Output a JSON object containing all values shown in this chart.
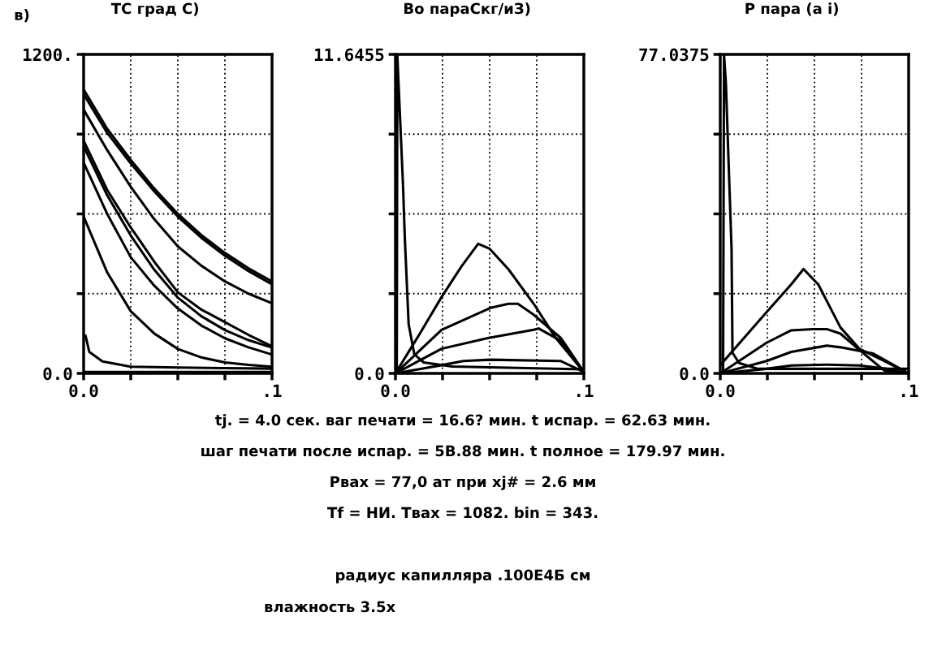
{
  "chart_data": [
    {
      "type": "line",
      "title": "ТС град С)",
      "annotations": [
        "в)"
      ],
      "xlim": [
        0,
        0.1
      ],
      "xticks": [
        {
          "value": 0,
          "label": "0.0"
        },
        {
          "value": 0.025,
          "label": null
        },
        {
          "value": 0.05,
          "label": null
        },
        {
          "value": 0.075,
          "label": null
        },
        {
          "value": 0.1,
          "label": ".1"
        }
      ],
      "ylim": [
        0,
        1200
      ],
      "yticks": [
        {
          "value": 0,
          "label": "0.0"
        },
        {
          "value": 300,
          "label": null
        },
        {
          "value": 600,
          "label": null
        },
        {
          "value": 900,
          "label": null
        },
        {
          "value": 1200,
          "label": "1200."
        }
      ],
      "grid": true,
      "line_style": "solid",
      "series": [
        {
          "color": "#000000",
          "x": [
            0,
            0.0125,
            0.025,
            0.0375,
            0.05,
            0.0625,
            0.075,
            0.0875,
            0.1
          ],
          "values": [
            1068,
            920,
            803,
            695,
            600,
            520,
            453,
            395,
            346
          ]
        },
        {
          "color": "#000000",
          "x": [
            0,
            0.0125,
            0.025,
            0.0375,
            0.05,
            0.0625,
            0.075,
            0.0875,
            0.1
          ],
          "values": [
            1050,
            905,
            790,
            685,
            590,
            510,
            443,
            385,
            335
          ]
        },
        {
          "color": "#000000",
          "x": [
            0,
            0.0125,
            0.025,
            0.0375,
            0.05,
            0.0625,
            0.075,
            0.0875,
            0.1
          ],
          "values": [
            992,
            840,
            702,
            580,
            478,
            405,
            346,
            300,
            264
          ]
        },
        {
          "color": "#000000",
          "x": [
            0,
            0.0125,
            0.025,
            0.0375,
            0.05,
            0.0625,
            0.075,
            0.0875,
            0.1
          ],
          "values": [
            875,
            690,
            549,
            420,
            305,
            240,
            193,
            145,
            102
          ]
        },
        {
          "color": "#000000",
          "x": [
            0,
            0.0125,
            0.025,
            0.0375,
            0.05,
            0.0625,
            0.075,
            0.0875,
            0.1
          ],
          "values": [
            854,
            670,
            519,
            390,
            285,
            215,
            163,
            125,
            97
          ]
        },
        {
          "color": "#000000",
          "x": [
            0,
            0.0125,
            0.025,
            0.0375,
            0.05,
            0.0625,
            0.075,
            0.0875,
            0.1
          ],
          "values": [
            793,
            600,
            437,
            330,
            244,
            180,
            132,
            98,
            71
          ]
        },
        {
          "color": "#000000",
          "x": [
            0,
            0.0125,
            0.025,
            0.0375,
            0.05,
            0.0625,
            0.075,
            0.0875,
            0.1
          ],
          "values": [
            590,
            380,
            234,
            150,
            92,
            60,
            41,
            32,
            25
          ]
        },
        {
          "color": "#000000",
          "x": [
            0,
            0.001,
            0.003,
            0.01,
            0.025,
            0.05,
            0.075,
            0.1
          ],
          "values": [
            142,
            142,
            81,
            45,
            25,
            22,
            20,
            18
          ]
        },
        {
          "color": "#000000",
          "x": [
            0,
            0.1
          ],
          "values": [
            5,
            5
          ]
        }
      ]
    },
    {
      "type": "line",
      "title": "Во параСкг/иЗ)",
      "xlim": [
        0,
        0.1
      ],
      "xticks": [
        {
          "value": 0,
          "label": "0.0"
        },
        {
          "value": 0.025,
          "label": null
        },
        {
          "value": 0.05,
          "label": null
        },
        {
          "value": 0.075,
          "label": null
        },
        {
          "value": 0.1,
          "label": ".1"
        }
      ],
      "ylim": [
        0,
        11.6455
      ],
      "yticks": [
        {
          "value": 0,
          "label": "0.0"
        },
        {
          "value": 2.911375,
          "label": null
        },
        {
          "value": 5.82275,
          "label": null
        },
        {
          "value": 8.734125,
          "label": null
        },
        {
          "value": 11.6455,
          "label": "11.6455"
        }
      ],
      "grid": true,
      "line_style": "solid",
      "series": [
        {
          "color": "#000000",
          "x": [
            0.0007,
            0.001,
            0.004,
            0.005,
            0.007,
            0.01,
            0.015,
            0.03,
            0.1
          ],
          "values": [
            0,
            11.6,
            6.9,
            4.9,
            1.8,
            0.7,
            0.4,
            0.25,
            0.15
          ]
        },
        {
          "color": "#000000",
          "x": [
            0,
            0.0125,
            0.0245,
            0.035,
            0.0439,
            0.05,
            0.06,
            0.0734,
            0.085,
            0.1
          ],
          "values": [
            0,
            1.4,
            2.79,
            3.9,
            4.73,
            4.55,
            3.8,
            2.54,
            1.3,
            0.05
          ]
        },
        {
          "color": "#000000",
          "x": [
            0,
            0.0245,
            0.0504,
            0.06,
            0.065,
            0.0734,
            0.0878,
            0.1
          ],
          "values": [
            0,
            1.59,
            2.39,
            2.54,
            2.54,
            2.14,
            1.29,
            0.05
          ]
        },
        {
          "color": "#000000",
          "x": [
            0,
            0.0245,
            0.049,
            0.0734,
            0.076,
            0.0878,
            0.1
          ],
          "values": [
            0,
            0.9,
            1.29,
            1.59,
            1.64,
            1.19,
            0.05
          ]
        },
        {
          "color": "#000000",
          "x": [
            0,
            0.0245,
            0.036,
            0.0504,
            0.0878,
            0.0986,
            0.1
          ],
          "values": [
            0,
            0.3,
            0.45,
            0.5,
            0.45,
            0.1,
            0.05
          ]
        }
      ]
    },
    {
      "type": "line",
      "title": "Р пара (а i)",
      "xlim": [
        0,
        0.1
      ],
      "xticks": [
        {
          "value": 0,
          "label": "0.0"
        },
        {
          "value": 0.025,
          "label": null
        },
        {
          "value": 0.05,
          "label": null
        },
        {
          "value": 0.075,
          "label": null
        },
        {
          "value": 0.1,
          "label": ".1"
        }
      ],
      "ylim": [
        0,
        77.0375
      ],
      "yticks": [
        {
          "value": 0,
          "label": "0.0"
        },
        {
          "value": 19.259375,
          "label": null
        },
        {
          "value": 38.51875,
          "label": null
        },
        {
          "value": 57.778125,
          "label": null
        },
        {
          "value": 77.0375,
          "label": "77.0375"
        }
      ],
      "grid": true,
      "line_style": "solid",
      "series": [
        {
          "color": "#000000",
          "x": [
            0.0015,
            0.002,
            0.003,
            0.006,
            0.0065,
            0.01,
            0.02,
            0.1
          ],
          "values": [
            0,
            77,
            70,
            30,
            5,
            2.5,
            1.1,
            1.1
          ]
        },
        {
          "color": "#000000",
          "x": [
            0,
            0.0246,
            0.0377,
            0.0442,
            0.052,
            0.0638,
            0.074,
            0.087,
            0.1
          ],
          "values": [
            2,
            14.8,
            21.5,
            25.2,
            21.5,
            11.1,
            5.9,
            3,
            0
          ]
        },
        {
          "color": "#000000",
          "x": [
            0,
            0.0246,
            0.0377,
            0.049,
            0.0565,
            0.0638,
            0.074,
            0.087,
            0.1
          ],
          "values": [
            0,
            7.4,
            10.4,
            10.7,
            10.7,
            9.6,
            5.6,
            0.7,
            0
          ]
        },
        {
          "color": "#000000",
          "x": [
            0,
            0.0246,
            0.0377,
            0.0565,
            0.0638,
            0.0812,
            0.1
          ],
          "values": [
            0,
            3,
            5.2,
            6.7,
            6.3,
            4.8,
            0
          ]
        },
        {
          "color": "#000000",
          "x": [
            0,
            0.0246,
            0.0377,
            0.0565,
            0.074,
            0.0884,
            0.1
          ],
          "values": [
            0,
            1.1,
            1.9,
            2.1,
            1.9,
            1.1,
            0
          ]
        }
      ]
    },
    {
      "type": "other",
      "annotations": [
        "tj. = 4.0 сек. ваг печати = 16.6? мин. t испар. = 62.63 мин.",
        "шаг печати после испар. = 5В.88 мин. t полное = 179.97 мин.",
        "Рвах = 77,0 ат при xj# = 2.6 мм",
        "Tf = НИ. Tвах = 1082. bin = 343.",
        "радиус капилляра .100Е4Б см",
        "влажность 3.5х"
      ]
    }
  ]
}
